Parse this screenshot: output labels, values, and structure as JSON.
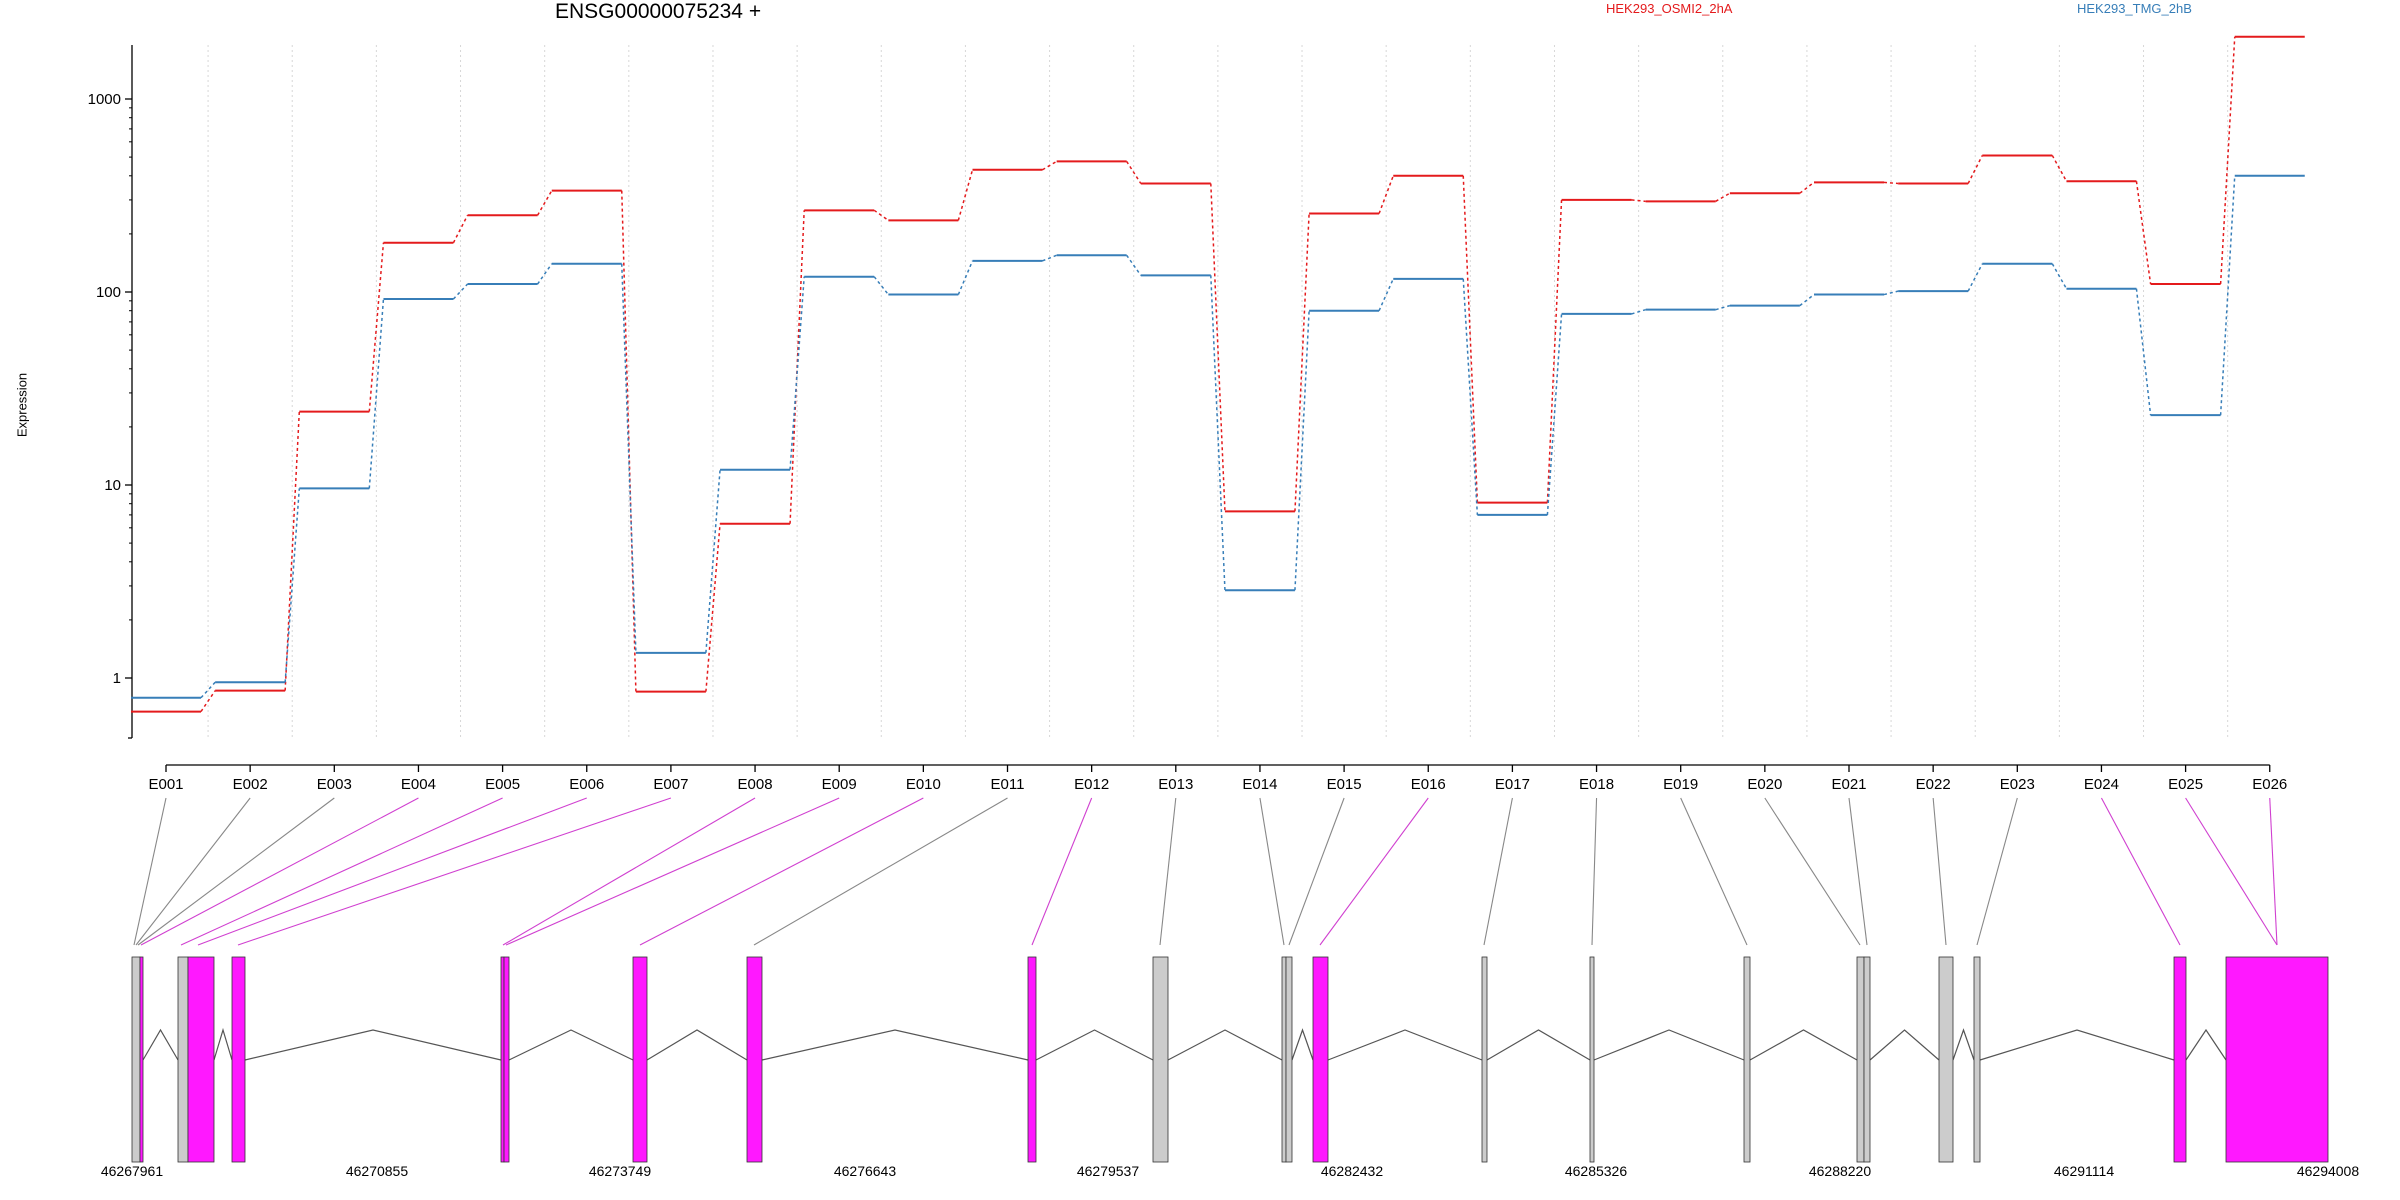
{
  "chart_data": {
    "type": "line",
    "title": "ENSG00000075234 +",
    "xlabel": "",
    "ylabel": "Expression",
    "y_scale": "log",
    "ylim": [
      0.45,
      3000
    ],
    "y_ticks": [
      1,
      10,
      100,
      1000
    ],
    "y_tick_labels": [
      "1",
      "10",
      "100",
      "1000"
    ],
    "grid": "vertical dotted lines at each exon",
    "legend": "top, inline text",
    "categories": [
      "E001",
      "E002",
      "E003",
      "E004",
      "E005",
      "E006",
      "E007",
      "E008",
      "E009",
      "E010",
      "E011",
      "E012",
      "E013",
      "E014",
      "E015",
      "E016",
      "E017",
      "E018",
      "E019",
      "E020",
      "E021",
      "E022",
      "E023",
      "E024",
      "E025",
      "E026"
    ],
    "series": [
      {
        "name": "HEK293_OSMI2_2hA",
        "color": "#e41a1c",
        "values": [
          0.67,
          0.86,
          24,
          180,
          250,
          335,
          0.85,
          6.3,
          265,
          235,
          430,
          475,
          365,
          7.3,
          255,
          400,
          8.1,
          300,
          295,
          325,
          370,
          365,
          510,
          375,
          110,
          2100
        ]
      },
      {
        "name": "HEK293_TMG_2hB",
        "color": "#377eb8",
        "values": [
          0.79,
          0.95,
          9.6,
          92,
          110,
          140,
          1.35,
          12,
          120,
          97,
          145,
          155,
          122,
          2.85,
          80,
          117,
          7.0,
          77,
          81,
          85,
          97,
          101,
          140,
          104,
          23,
          400
        ]
      }
    ],
    "gene_model": {
      "coordinate_labels": [
        "46267961",
        "46270855",
        "46273749",
        "46276643",
        "46279537",
        "46282432",
        "46285326",
        "46288220",
        "46291114",
        "46294008"
      ],
      "exon_color_highlighted": "#ff18ff",
      "exon_color_normal": "#cccccc",
      "highlighted_exons": [
        "E002",
        "E004",
        "E005",
        "E006",
        "E007",
        "E008",
        "E009",
        "E010",
        "E011",
        "E014",
        "E018",
        "E025",
        "E026"
      ]
    }
  }
}
